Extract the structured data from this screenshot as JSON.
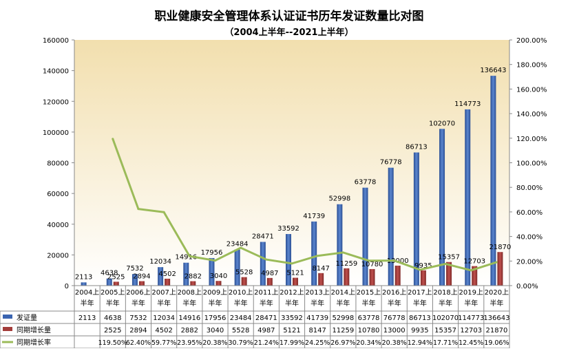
{
  "chart_data": {
    "type": "bar+line",
    "title": "职业健康安全管理体系认证证书历年发证数量比对图",
    "subtitle": "（2004上半年--2021上半年）",
    "categories": [
      "2004上半年",
      "2005上半年",
      "2006上半年",
      "2007上半年",
      "2008上半年",
      "2009上半年",
      "2010上半年",
      "2011上半年",
      "2012上半年",
      "2013上半年",
      "2014上半年",
      "2015上半年",
      "2016上半年",
      "2017上半年",
      "2018上半年",
      "2019上半年",
      "2020上半年"
    ],
    "category_lines": [
      [
        "2004上",
        "半年"
      ],
      [
        "2005上",
        "半年"
      ],
      [
        "2006上",
        "半年"
      ],
      [
        "2007上",
        "半年"
      ],
      [
        "2008上",
        "半年"
      ],
      [
        "2009上",
        "半年"
      ],
      [
        "2010上",
        "半年"
      ],
      [
        "2011上",
        "半年"
      ],
      [
        "2012上",
        "半年"
      ],
      [
        "2013上",
        "半年"
      ],
      [
        "2014上",
        "半年"
      ],
      [
        "2015上",
        "半年"
      ],
      [
        "2016上",
        "半年"
      ],
      [
        "2017上",
        "半年"
      ],
      [
        "2018上",
        "半年"
      ],
      [
        "2019上",
        "半年"
      ],
      [
        "2020上",
        "半年"
      ]
    ],
    "series": [
      {
        "name": "发证量",
        "type": "bar",
        "axis": "left",
        "color": "#3a64b0",
        "values": [
          2113,
          4638,
          7532,
          12034,
          14916,
          17956,
          23484,
          28471,
          33592,
          41739,
          52998,
          63778,
          76778,
          86713,
          102070,
          114773,
          136643
        ]
      },
      {
        "name": "同期增长量",
        "type": "bar",
        "axis": "left",
        "color": "#a33c3a",
        "values": [
          null,
          2525,
          2894,
          4502,
          2882,
          3040,
          5528,
          4987,
          5121,
          8147,
          11259,
          10780,
          13000,
          9935,
          15357,
          12703,
          21870
        ]
      },
      {
        "name": "同期增长率",
        "type": "line",
        "axis": "right",
        "color": "#9bbb59",
        "values": [
          null,
          119.5,
          62.4,
          59.77,
          23.95,
          20.38,
          30.79,
          21.24,
          17.99,
          24.25,
          26.97,
          20.34,
          20.38,
          12.94,
          17.71,
          12.45,
          19.06
        ],
        "labels": [
          "",
          "119.50%",
          "62.40%",
          "59.77%",
          "23.95%",
          "20.38%",
          "30.79%",
          "21.24%",
          "17.99%",
          "24.25%",
          "26.97%",
          "20.34%",
          "20.38%",
          "12.94%",
          "17.71%",
          "12.45%",
          "19.06%"
        ]
      }
    ],
    "y_left": {
      "range": [
        0,
        160000
      ],
      "ticks": [
        "0",
        "20000",
        "40000",
        "60000",
        "80000",
        "100000",
        "120000",
        "140000",
        "160000"
      ]
    },
    "y_right": {
      "range": [
        0,
        200
      ],
      "ticks": [
        "0.00%",
        "20.00%",
        "40.00%",
        "60.00%",
        "80.00%",
        "100.00%",
        "120.00%",
        "140.00%",
        "160.00%",
        "180.00%",
        "200.00%"
      ]
    },
    "grid": false,
    "legend": "data-table"
  }
}
